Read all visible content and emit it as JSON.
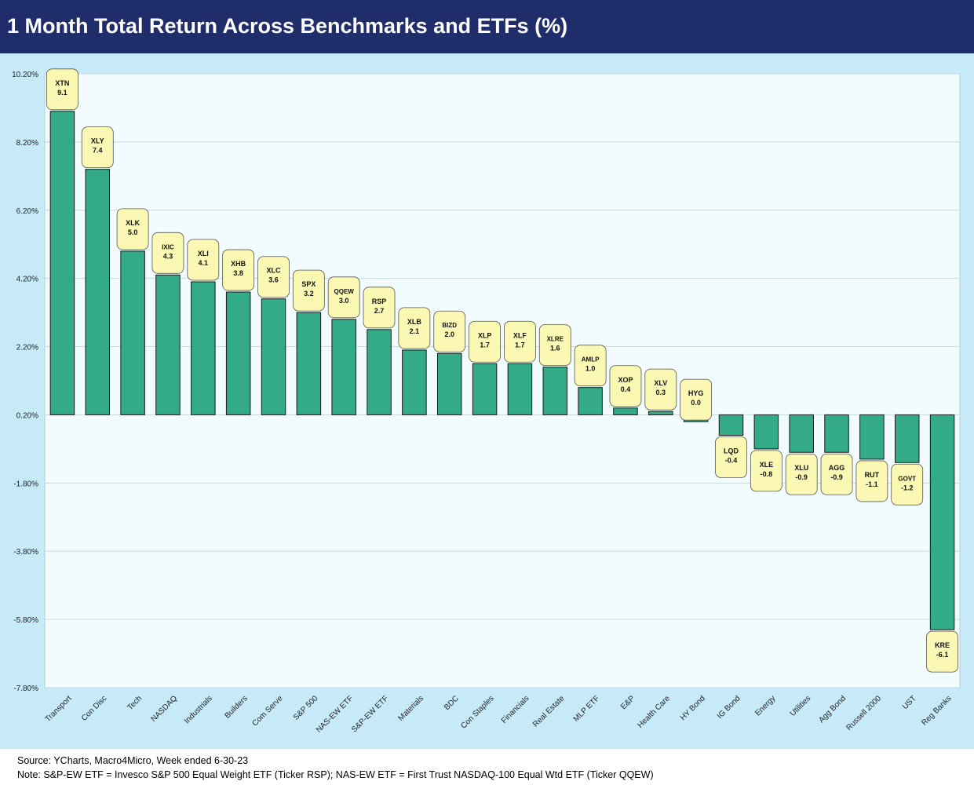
{
  "chart_data": {
    "type": "bar",
    "title": "1 Month Total Return Across Benchmarks and ETFs (%)",
    "xlabel": "",
    "ylabel": "",
    "ylim": [
      -7.8,
      10.2
    ],
    "yticks": [
      "10.20%",
      "8.20%",
      "6.20%",
      "4.20%",
      "2.20%",
      "0.20%",
      "-1.80%",
      "-3.80%",
      "-5.80%",
      "-7.80%"
    ],
    "ytick_values": [
      10.2,
      8.2,
      6.2,
      4.2,
      2.2,
      0.2,
      -1.8,
      -3.8,
      -5.8,
      -7.8
    ],
    "baseline": 0.2,
    "grid": true,
    "colors": {
      "bar": "#33ab86",
      "bar_stroke": "#1a1a1a",
      "label_fill": "#fbf8b4",
      "plot_bg": "#f2fbfd",
      "grid": "#c5dbe4"
    },
    "categories": [
      "Transport",
      "Con Disc",
      "Tech",
      "NASDAQ",
      "Industrials",
      "Builders",
      "Com Serve",
      "S&P 500",
      "NAS-EW ETF",
      "S&P-EW ETF",
      "Materials",
      "BDC",
      "Con Staples",
      "Financials",
      "Real Estate",
      "MLP ETF",
      "E&P",
      "Health Care",
      "HY Bond",
      "IG Bond",
      "Energy",
      "Utilities",
      "Agg Bond",
      "Russell 2000",
      "UST",
      "Reg Banks"
    ],
    "tickers": [
      "XTN",
      "XLY",
      "XLK",
      "IXIC",
      "XLI",
      "XHB",
      "XLC",
      "SPX",
      "QQEW",
      "RSP",
      "XLB",
      "BIZD",
      "XLP",
      "XLF",
      "XLRE",
      "AMLP",
      "XOP",
      "XLV",
      "HYG",
      "LQD",
      "XLE",
      "XLU",
      "AGG",
      "RUT",
      "GOVT",
      "KRE"
    ],
    "values": [
      9.1,
      7.4,
      5.0,
      4.3,
      4.1,
      3.8,
      3.6,
      3.2,
      3.0,
      2.7,
      2.1,
      2.0,
      1.7,
      1.7,
      1.6,
      1.0,
      0.4,
      0.3,
      0.0,
      -0.4,
      -0.8,
      -0.9,
      -0.9,
      -1.1,
      -1.2,
      -6.1
    ],
    "value_labels": [
      "9.1",
      "7.4",
      "5.0",
      "4.3",
      "4.1",
      "3.8",
      "3.6",
      "3.2",
      "3.0",
      "2.7",
      "2.1",
      "2.0",
      "1.7",
      "1.7",
      "1.6",
      "1.0",
      "0.4",
      "0.3",
      "0.0",
      "-0.4",
      "-0.8",
      "-0.9",
      "-0.9",
      "-1.1",
      "-1.2",
      "-6.1"
    ]
  },
  "footer": {
    "source": "Source: YCharts, Macro4Micro, Week ended 6-30-23",
    "note": "Note: S&P-EW ETF = Invesco S&P 500 Equal Weight ETF (Ticker RSP); NAS-EW ETF = First Trust NASDAQ-100 Equal Wtd ETF (Ticker QQEW)"
  }
}
